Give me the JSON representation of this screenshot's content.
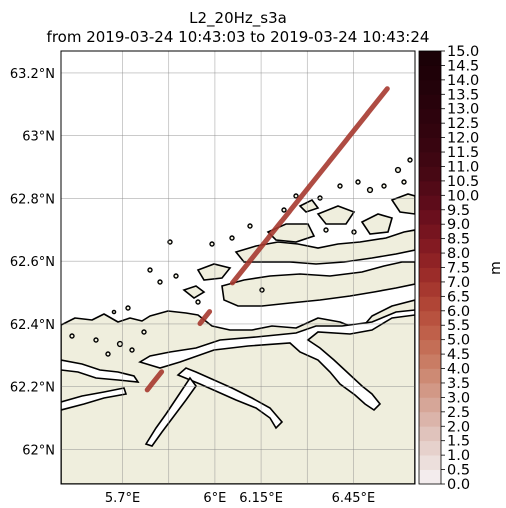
{
  "title": {
    "line1": "L2_20Hz_s3a",
    "line2": "from 2019-03-24 10:43:03 to 2019-03-24 10:43:24"
  },
  "map": {
    "lon_range": [
      5.5,
      6.65
    ],
    "lat_range": [
      61.89,
      63.27
    ],
    "lon_ticks": [
      "5.7°E",
      "6°E",
      "6.15°E",
      "6.45°E"
    ],
    "lon_tick_values": [
      5.7,
      6.0,
      6.15,
      6.45
    ],
    "lat_ticks": [
      "63.2°N",
      "63°N",
      "62.8°N",
      "62.6°N",
      "62.4°N",
      "62.2°N",
      "62°N"
    ],
    "lat_tick_values": [
      63.2,
      63.0,
      62.8,
      62.6,
      62.4,
      62.2,
      62.0
    ],
    "land_color": "#efeedd",
    "sea_color": "#ffffff",
    "track": {
      "start": {
        "lon": 5.78,
        "lat": 62.19
      },
      "end": {
        "lon": 6.56,
        "lat": 63.15
      },
      "gaps_lat": [
        [
          62.25,
          62.4
        ],
        [
          62.44,
          62.53
        ]
      ],
      "value_m": 6.6
    }
  },
  "colorbar": {
    "label": "m",
    "min": 0.0,
    "max": 15.0,
    "tick_labels": [
      "0.0",
      "0.5",
      "1.0",
      "1.5",
      "2.0",
      "2.5",
      "3.0",
      "3.5",
      "4.0",
      "4.5",
      "5.0",
      "5.5",
      "6.0",
      "6.5",
      "7.0",
      "7.5",
      "8.0",
      "8.5",
      "9.0",
      "9.5",
      "10.0",
      "10.5",
      "11.0",
      "11.5",
      "12.0",
      "12.5",
      "13.0",
      "13.5",
      "14.0",
      "14.5",
      "15.0"
    ],
    "colors": [
      "#f3eced",
      "#ecdfdc",
      "#e6d1cc",
      "#e0c3bc",
      "#dbb4aa",
      "#d6a698",
      "#d29886",
      "#cd8a74",
      "#c97c64",
      "#c46e56",
      "#bf604a",
      "#b8523f",
      "#b04536",
      "#a6382f",
      "#9b2c29",
      "#8f2225",
      "#831a22",
      "#76141f",
      "#6a0f1d",
      "#5d0c1a",
      "#520a17",
      "#470814",
      "#3f0612",
      "#380510",
      "#32040e",
      "#2d030d",
      "#28020b",
      "#23020a",
      "#1f0108",
      "#1b0107"
    ]
  }
}
